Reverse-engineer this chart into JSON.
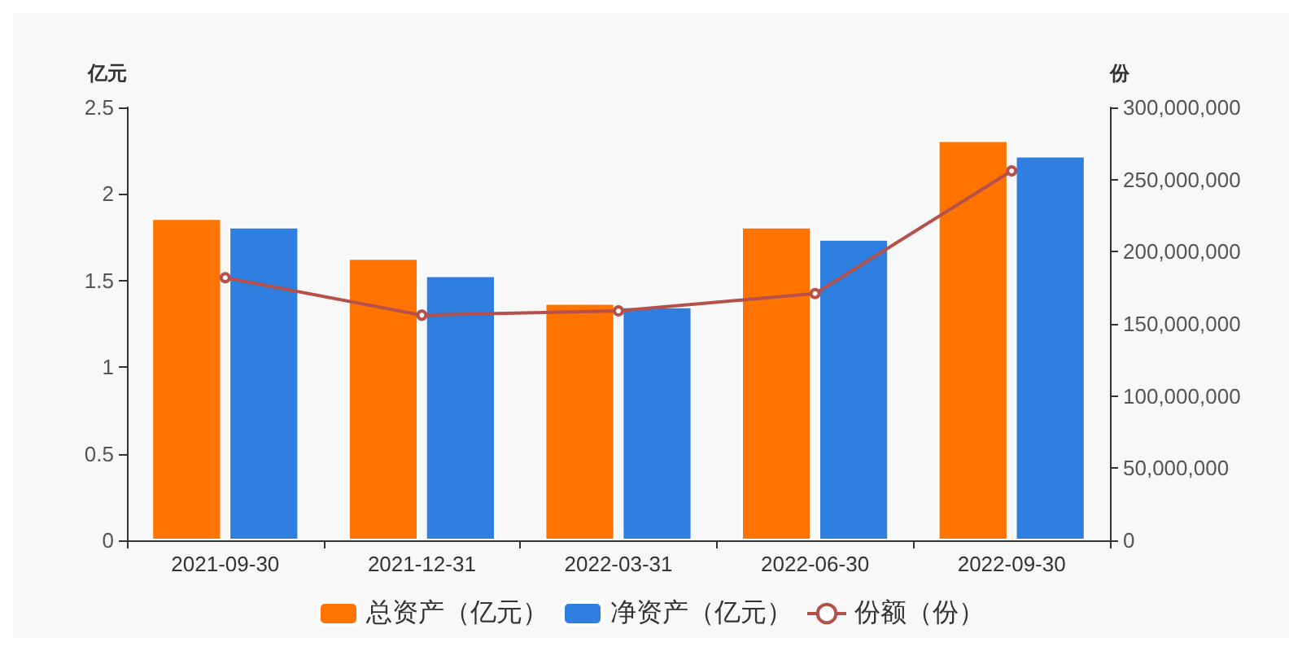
{
  "chart_data": {
    "type": "bar",
    "ylabel": "亿元",
    "y2label": "份",
    "categories": [
      "2021-09-30",
      "2021-12-31",
      "2022-03-31",
      "2022-06-30",
      "2022-09-30"
    ],
    "series": [
      {
        "name": "总资产（亿元）",
        "color": "#ff7300",
        "values": [
          1.86,
          1.63,
          1.37,
          1.81,
          2.31
        ]
      },
      {
        "name": "净资产（亿元）",
        "color": "#2e7fdf",
        "values": [
          1.81,
          1.53,
          1.35,
          1.74,
          2.22
        ]
      },
      {
        "name": "份额（份）",
        "type": "line",
        "axis": "y2",
        "color": "#b5504a",
        "marker": "circle",
        "values": [
          182000000,
          156000000,
          159000000,
          171000000,
          256000000
        ]
      }
    ],
    "ylim": [
      0,
      2.5
    ],
    "yticks": [
      0,
      0.5,
      1,
      1.5,
      2,
      2.5
    ],
    "y2lim": [
      0,
      300000000
    ],
    "y2ticks": [
      0,
      {
        "value": 50000000,
        "label": "50,000,000"
      },
      {
        "value": 100000000,
        "label": "100,000,000"
      },
      {
        "value": 150000000,
        "label": "150,000,000"
      },
      {
        "value": 200000000,
        "label": "200,000,000"
      },
      {
        "value": 250000000,
        "label": "250,000,000"
      },
      {
        "value": 300000000,
        "label": "300,000,000"
      }
    ],
    "grid": false,
    "legend": "bottom"
  }
}
